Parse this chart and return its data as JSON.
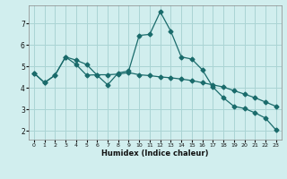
{
  "xlabel": "Humidex (Indice chaleur)",
  "bg_color": "#d1eeee",
  "grid_color": "#aad4d4",
  "line_color": "#1a6b6b",
  "xlim": [
    -0.5,
    23.5
  ],
  "ylim": [
    1.6,
    7.85
  ],
  "yticks": [
    2,
    3,
    4,
    5,
    6,
    7
  ],
  "xticks": [
    0,
    1,
    2,
    3,
    4,
    5,
    6,
    7,
    8,
    9,
    10,
    11,
    12,
    13,
    14,
    15,
    16,
    17,
    18,
    19,
    20,
    21,
    22,
    23
  ],
  "line1_x": [
    0,
    1,
    2,
    3,
    4,
    5,
    6,
    7,
    8,
    9,
    10,
    11,
    12,
    13,
    14,
    15,
    16,
    17,
    18,
    19,
    20,
    21,
    22,
    23
  ],
  "line1_y": [
    4.7,
    4.25,
    4.6,
    5.45,
    5.3,
    5.1,
    4.6,
    4.15,
    4.7,
    4.8,
    6.45,
    6.5,
    7.55,
    6.65,
    5.45,
    5.35,
    4.85,
    4.05,
    3.55,
    3.15,
    3.05,
    2.85,
    2.6,
    2.05
  ],
  "line2_x": [
    0,
    1,
    2,
    3,
    4,
    5,
    6,
    7,
    8,
    9,
    10,
    11,
    12,
    13,
    14,
    15,
    16,
    17,
    18,
    19,
    20,
    21,
    22,
    23
  ],
  "line2_y": [
    4.7,
    4.25,
    4.6,
    5.45,
    5.1,
    4.6,
    4.62,
    4.62,
    4.65,
    4.72,
    4.62,
    4.58,
    4.52,
    4.48,
    4.42,
    4.35,
    4.25,
    4.15,
    4.05,
    3.88,
    3.72,
    3.55,
    3.35,
    3.15
  ]
}
